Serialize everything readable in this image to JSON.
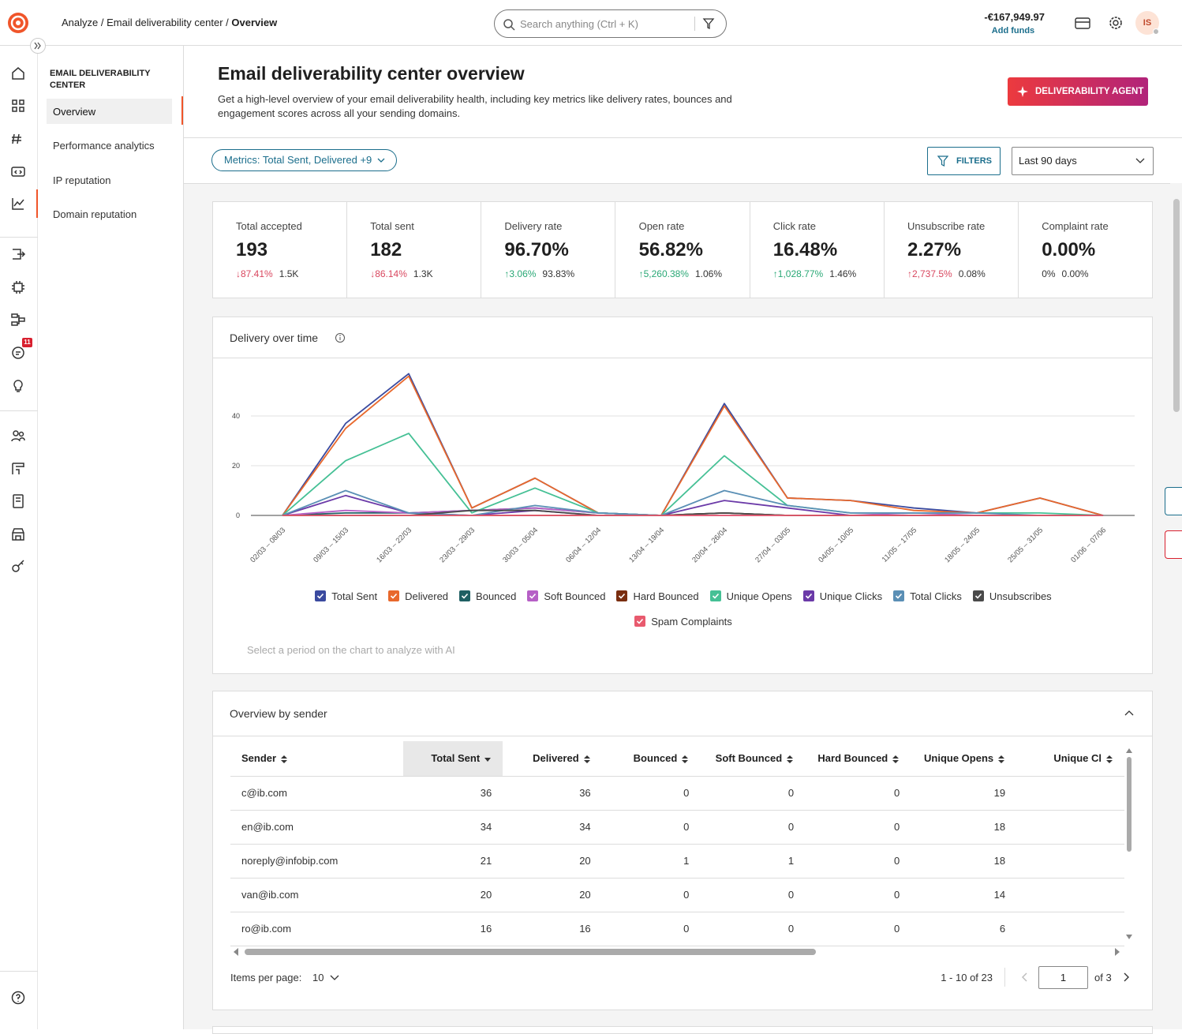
{
  "header": {
    "breadcrumb": {
      "items": [
        "Analyze",
        "Email deliverability center",
        "Overview"
      ],
      "separator": "/"
    },
    "search_placeholder": "Search anything (Ctrl + K)",
    "balance": "-€167,949.97",
    "add_funds": "Add funds",
    "avatar": "IS",
    "notification_badge": "11"
  },
  "subnav": {
    "title": "EMAIL DELIVERABILITY CENTER",
    "items": [
      "Overview",
      "Performance analytics",
      "IP reputation",
      "Domain reputation"
    ],
    "active": 0
  },
  "page": {
    "title": "Email deliverability center overview",
    "description": "Get a high-level overview of your email deliverability health, including key metrics like delivery rates, bounces and engagement scores across all your sending domains.",
    "agent_button": "DELIVERABILITY AGENT"
  },
  "toolbar": {
    "metrics": "Metrics: Total Sent, Delivered +9",
    "filters": "FILTERS",
    "period": "Last 90 days"
  },
  "kpis": [
    {
      "label": "Total accepted",
      "value": "193",
      "change": "↓87.41%",
      "trend": "negative",
      "previous": "1.5K"
    },
    {
      "label": "Total sent",
      "value": "182",
      "change": "↓86.14%",
      "trend": "negative",
      "previous": "1.3K"
    },
    {
      "label": "Delivery rate",
      "value": "96.70%",
      "change": "↑3.06%",
      "trend": "positive",
      "previous": "93.83%"
    },
    {
      "label": "Open rate",
      "value": "56.82%",
      "change": "↑5,260.38%",
      "trend": "positive",
      "previous": "1.06%"
    },
    {
      "label": "Click rate",
      "value": "16.48%",
      "change": "↑1,028.77%",
      "trend": "positive",
      "previous": "1.46%"
    },
    {
      "label": "Unsubscribe rate",
      "value": "2.27%",
      "change": "↑2,737.5%",
      "trend": "negative",
      "previous": "0.08%"
    },
    {
      "label": "Complaint rate",
      "value": "0.00%",
      "change": "0%",
      "trend": "neutral",
      "previous": "0.00%"
    }
  ],
  "chart_data": {
    "type": "line",
    "title": "Delivery over time",
    "note": "Select a period on the chart to analyze with AI",
    "categories": [
      "02/03 – 08/03",
      "09/03 – 15/03",
      "16/03 – 22/03",
      "23/03 – 29/03",
      "30/03 – 05/04",
      "06/04 – 12/04",
      "13/04 – 19/04",
      "20/04 – 26/04",
      "27/04 – 03/05",
      "04/05 – 10/05",
      "11/05 – 17/05",
      "18/05 – 24/05",
      "25/05 – 31/05",
      "01/06 – 07/06"
    ],
    "series": [
      {
        "name": "Total Sent",
        "color": "#3a4a9f",
        "values": [
          0,
          37,
          57,
          3,
          15,
          1,
          0,
          45,
          7,
          6,
          3,
          1,
          7,
          0
        ]
      },
      {
        "name": "Delivered",
        "color": "#e8682c",
        "values": [
          0,
          35,
          56,
          3,
          15,
          1,
          0,
          44,
          7,
          6,
          2,
          1,
          7,
          0
        ]
      },
      {
        "name": "Bounced",
        "color": "#1f5f63",
        "values": [
          0,
          1,
          1,
          2,
          3,
          1,
          0,
          1,
          0,
          0,
          0,
          0,
          0,
          0
        ]
      },
      {
        "name": "Soft Bounced",
        "color": "#b65fc6",
        "values": [
          0,
          2,
          1,
          2,
          3,
          1,
          0,
          0,
          0,
          0,
          1,
          0,
          0,
          0
        ]
      },
      {
        "name": "Hard Bounced",
        "color": "#7a2e10",
        "values": [
          0,
          0,
          0,
          0,
          0,
          0,
          0,
          1,
          0,
          0,
          0,
          0,
          0,
          0
        ]
      },
      {
        "name": "Unique Opens",
        "color": "#45c095",
        "values": [
          0,
          22,
          33,
          1,
          11,
          1,
          0,
          24,
          4,
          1,
          1,
          1,
          1,
          0
        ]
      },
      {
        "name": "Unique Clicks",
        "color": "#6b3aa8",
        "values": [
          0,
          8,
          1,
          0,
          2,
          0,
          0,
          6,
          3,
          0,
          0,
          0,
          0,
          0
        ]
      },
      {
        "name": "Total Clicks",
        "color": "#5a8fb5",
        "values": [
          0,
          10,
          1,
          0,
          4,
          1,
          0,
          10,
          4,
          1,
          1,
          1,
          0,
          0
        ]
      },
      {
        "name": "Unsubscribes",
        "color": "#4a4a4a",
        "values": [
          0,
          0,
          0,
          2,
          2,
          0,
          0,
          1,
          0,
          0,
          0,
          0,
          0,
          0
        ]
      },
      {
        "name": "Spam Complaints",
        "color": "#e85a6e",
        "values": [
          0,
          0,
          0,
          0,
          0,
          0,
          0,
          0,
          0,
          0,
          0,
          0,
          0,
          0
        ]
      }
    ],
    "ylim": [
      0,
      60
    ],
    "yticks": [
      0,
      20,
      40
    ],
    "grid": true
  },
  "table": {
    "title": "Overview by sender",
    "columns": [
      "Sender",
      "Total Sent",
      "Delivered",
      "Bounced",
      "Soft Bounced",
      "Hard Bounced",
      "Unique Opens",
      "Unique Cl"
    ],
    "sorted_column": 1,
    "rows": [
      [
        "c@ib.com",
        36,
        36,
        0,
        0,
        0,
        19
      ],
      [
        "en@ib.com",
        34,
        34,
        0,
        0,
        0,
        18
      ],
      [
        "noreply@infobip.com",
        21,
        20,
        1,
        1,
        0,
        18
      ],
      [
        "van@ib.com",
        20,
        20,
        0,
        0,
        0,
        14
      ],
      [
        "ro@ib.com",
        16,
        16,
        0,
        0,
        0,
        6
      ]
    ],
    "items_per_page_label": "Items per page:",
    "items_per_page": 10,
    "range": "1 - 10 of 23",
    "page": 1,
    "page_count_label": "of 3"
  }
}
